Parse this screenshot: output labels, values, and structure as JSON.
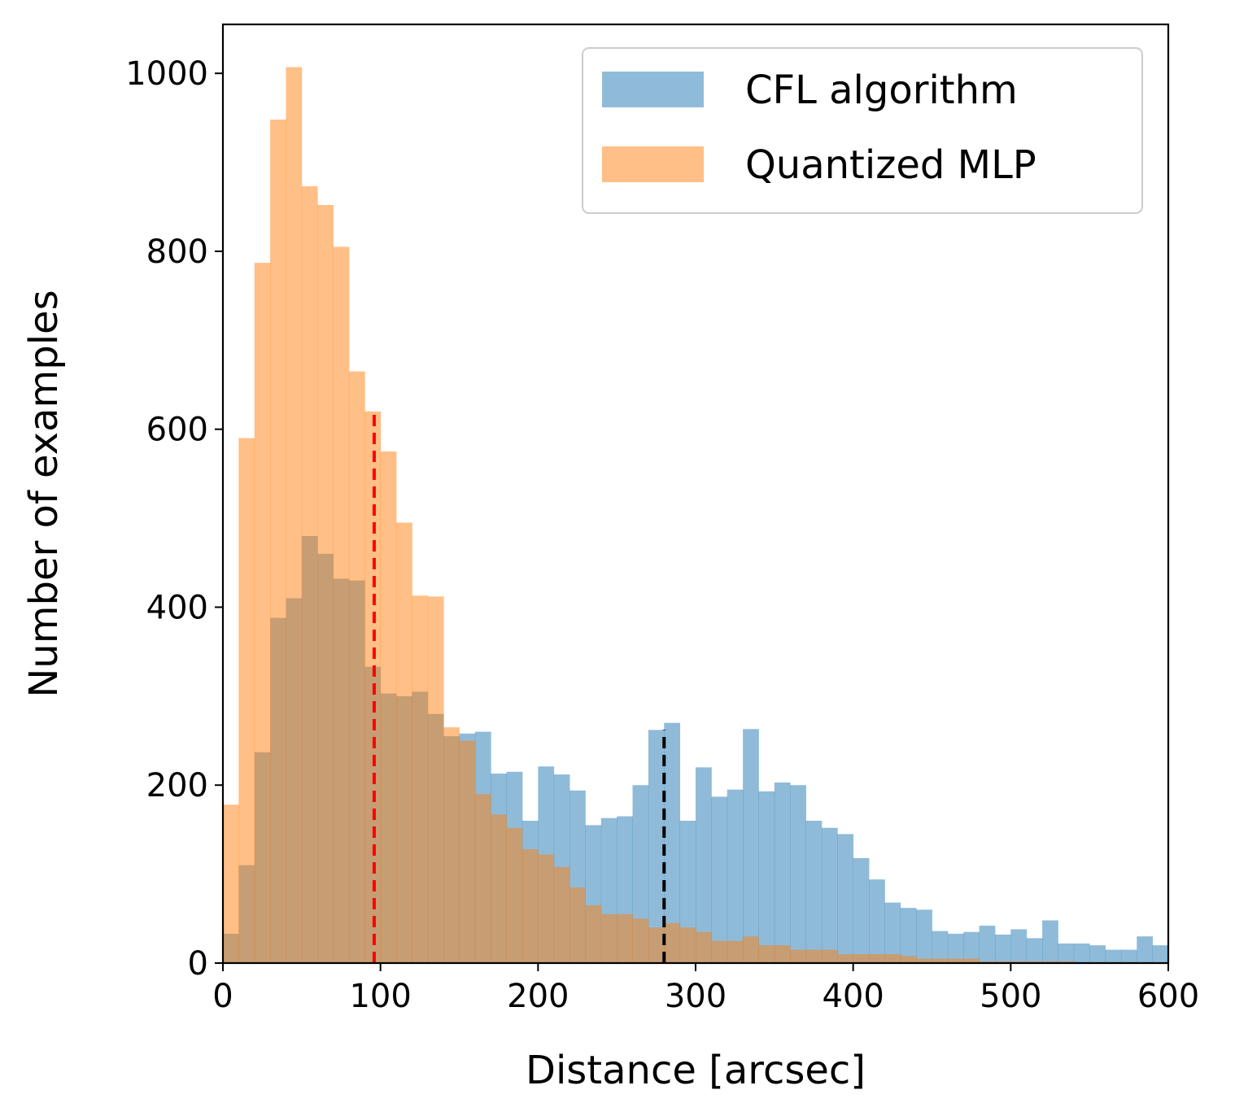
{
  "chart_data": {
    "type": "histogram",
    "xlabel": "Distance [arcsec]",
    "ylabel": "Number of examples",
    "xlim": [
      0,
      600
    ],
    "ylim": [
      0,
      1055
    ],
    "xticks": [
      0,
      100,
      200,
      300,
      400,
      500,
      600
    ],
    "xtick_labels": [
      "0",
      "100",
      "200",
      "300",
      "400",
      "500",
      "600"
    ],
    "yticks": [
      0,
      200,
      400,
      600,
      800,
      1000
    ],
    "ytick_labels": [
      "0",
      "200",
      "400",
      "600",
      "800",
      "1000"
    ],
    "bin_width": 10,
    "legend": {
      "position": "top-right"
    },
    "series": [
      {
        "name": "CFL algorithm",
        "color": "#1f77b4",
        "opacity": 0.5,
        "values": [
          33,
          110,
          237,
          388,
          410,
          480,
          460,
          432,
          430,
          333,
          303,
          300,
          305,
          280,
          255,
          258,
          260,
          213,
          215,
          160,
          221,
          212,
          194,
          155,
          163,
          165,
          200,
          262,
          270,
          160,
          220,
          187,
          195,
          263,
          193,
          203,
          200,
          160,
          152,
          145,
          118,
          94,
          68,
          62,
          60,
          36,
          33,
          35,
          42,
          32,
          38,
          28,
          48,
          22,
          22,
          20,
          15,
          15,
          30,
          20
        ]
      },
      {
        "name": "Quantized MLP",
        "color": "#ff7f0e",
        "opacity": 0.5,
        "values": [
          178,
          590,
          787,
          948,
          1007,
          873,
          852,
          805,
          665,
          620,
          575,
          495,
          413,
          412,
          265,
          250,
          190,
          167,
          152,
          128,
          122,
          108,
          85,
          65,
          55,
          55,
          50,
          40,
          45,
          40,
          35,
          25,
          25,
          30,
          20,
          20,
          15,
          15,
          15,
          10,
          10,
          10,
          10,
          8,
          5,
          5,
          5,
          5,
          2,
          2,
          2,
          2,
          2,
          2,
          1,
          1,
          1,
          1,
          0,
          0
        ]
      }
    ],
    "reference_lines": [
      {
        "x": 96,
        "y_top": 620,
        "color": "#ff0000",
        "style": "dashed"
      },
      {
        "x": 280,
        "y_top": 262,
        "color": "#000000",
        "style": "dashed"
      }
    ]
  }
}
